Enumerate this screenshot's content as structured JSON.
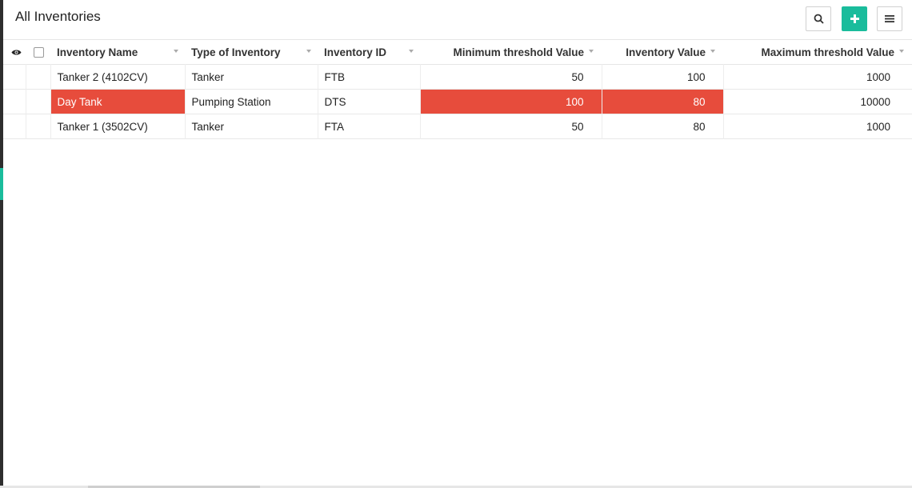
{
  "header": {
    "title": "All Inventories",
    "search_icon": "search-icon",
    "add_icon": "plus-icon",
    "menu_icon": "hamburger-icon"
  },
  "table": {
    "columns": [
      {
        "label": "Inventory Name"
      },
      {
        "label": "Type of Inventory"
      },
      {
        "label": "Inventory ID"
      },
      {
        "label": "Minimum threshold Value"
      },
      {
        "label": "Inventory Value"
      },
      {
        "label": "Maximum threshold Value"
      }
    ],
    "rows": [
      {
        "name": "Tanker 2 (4102CV)",
        "type": "Tanker",
        "id": "FTB",
        "min": "50",
        "value": "100",
        "max": "1000",
        "alert": false
      },
      {
        "name": "Day Tank",
        "type": "Pumping Station",
        "id": "DTS",
        "min": "100",
        "value": "80",
        "max": "10000",
        "alert": true
      },
      {
        "name": "Tanker 1 (3502CV)",
        "type": "Tanker",
        "id": "FTA",
        "min": "50",
        "value": "80",
        "max": "1000",
        "alert": false
      }
    ]
  },
  "colors": {
    "accent": "#1abc9c",
    "alert": "#e74c3c"
  }
}
